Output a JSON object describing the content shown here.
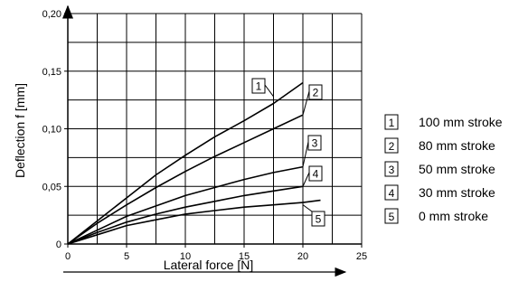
{
  "chart_data": {
    "type": "line",
    "xlabel": "Lateral force [N]",
    "ylabel": "Deflection f [mm]",
    "xlim": [
      0,
      25
    ],
    "ylim": [
      0,
      0.2
    ],
    "x_ticks": [
      "0",
      "5",
      "10",
      "15",
      "20",
      "25"
    ],
    "y_ticks": [
      "0",
      "0,05",
      "0,10",
      "0,15",
      "0,20"
    ],
    "grid": true,
    "legend_position": "right",
    "series": [
      {
        "id": "1",
        "name": "100 mm stroke",
        "points": [
          [
            0,
            0
          ],
          [
            2.5,
            0.02
          ],
          [
            5,
            0.04
          ],
          [
            7.5,
            0.06
          ],
          [
            10,
            0.077
          ],
          [
            12.5,
            0.093
          ],
          [
            15,
            0.107
          ],
          [
            17.5,
            0.122
          ],
          [
            20,
            0.14
          ]
        ]
      },
      {
        "id": "2",
        "name": "80 mm stroke",
        "points": [
          [
            0,
            0
          ],
          [
            2.5,
            0.018
          ],
          [
            5,
            0.034
          ],
          [
            7.5,
            0.049
          ],
          [
            10,
            0.063
          ],
          [
            12.5,
            0.076
          ],
          [
            15,
            0.088
          ],
          [
            17.5,
            0.1
          ],
          [
            20,
            0.112
          ]
        ]
      },
      {
        "id": "3",
        "name": "50 mm stroke",
        "points": [
          [
            0,
            0
          ],
          [
            2.5,
            0.012
          ],
          [
            5,
            0.024
          ],
          [
            7.5,
            0.033
          ],
          [
            10,
            0.042
          ],
          [
            12.5,
            0.049
          ],
          [
            15,
            0.056
          ],
          [
            17.5,
            0.062
          ],
          [
            20,
            0.067
          ]
        ]
      },
      {
        "id": "4",
        "name": "30 mm stroke",
        "points": [
          [
            0,
            0
          ],
          [
            2.5,
            0.01
          ],
          [
            5,
            0.019
          ],
          [
            7.5,
            0.026
          ],
          [
            10,
            0.032
          ],
          [
            12.5,
            0.037
          ],
          [
            15,
            0.042
          ],
          [
            17.5,
            0.046
          ],
          [
            20,
            0.05
          ]
        ]
      },
      {
        "id": "5",
        "name": "0 mm stroke",
        "points": [
          [
            0,
            0
          ],
          [
            2.5,
            0.008
          ],
          [
            5,
            0.016
          ],
          [
            7.5,
            0.021
          ],
          [
            10,
            0.026
          ],
          [
            12.5,
            0.029
          ],
          [
            15,
            0.032
          ],
          [
            17.5,
            0.034
          ],
          [
            20,
            0.036
          ],
          [
            21.5,
            0.038
          ]
        ]
      }
    ],
    "callouts": [
      {
        "id": "1",
        "label": "1",
        "at": [
          17.5,
          0.128
        ]
      },
      {
        "id": "2",
        "label": "2",
        "at": [
          20,
          0.112
        ]
      },
      {
        "id": "3",
        "label": "3",
        "at": [
          20,
          0.067
        ]
      },
      {
        "id": "4",
        "label": "4",
        "at": [
          20,
          0.05
        ]
      },
      {
        "id": "5",
        "label": "5",
        "at": [
          20,
          0.034
        ]
      }
    ]
  }
}
